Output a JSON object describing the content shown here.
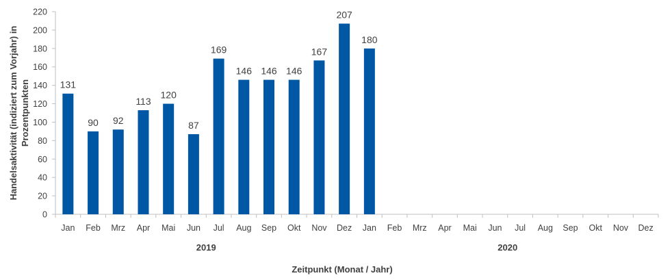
{
  "chart_data": {
    "type": "bar",
    "title": "",
    "xlabel": "Zeitpunkt (Monat / Jahr)",
    "ylabel_line1": "Handelsaktivität (indiziert zum Vorjahr) in",
    "ylabel_line2": "Prozentpunkten",
    "ylim": [
      0,
      220
    ],
    "yticks": [
      0,
      20,
      40,
      60,
      80,
      100,
      120,
      140,
      160,
      180,
      200,
      220
    ],
    "categories": [
      "Jan",
      "Feb",
      "Mrz",
      "Apr",
      "Mai",
      "Jun",
      "Jul",
      "Aug",
      "Sep",
      "Okt",
      "Nov",
      "Dez",
      "Jan",
      "Feb",
      "Mrz",
      "Apr",
      "Mai",
      "Jun",
      "Jul",
      "Aug",
      "Sep",
      "Okt",
      "Nov",
      "Dez"
    ],
    "groups": [
      {
        "label": "2019",
        "span": 12
      },
      {
        "label": "2020",
        "span": 12
      }
    ],
    "values": [
      131,
      90,
      92,
      113,
      120,
      87,
      169,
      146,
      146,
      146,
      167,
      207,
      180,
      null,
      null,
      null,
      null,
      null,
      null,
      null,
      null,
      null,
      null,
      null
    ],
    "bar_color": "#0057A3",
    "grid": false,
    "legend": "none"
  }
}
